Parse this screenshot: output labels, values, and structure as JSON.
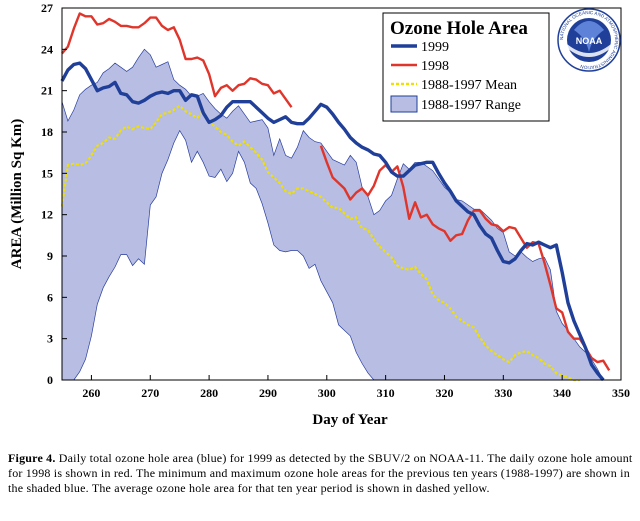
{
  "chart_data": {
    "type": "line",
    "title": "Ozone Hole Area",
    "xlabel": "Day of Year",
    "ylabel": "AREA (Million Sq Km)",
    "xlim": [
      255,
      350
    ],
    "ylim": [
      0,
      27
    ],
    "xticks": [
      260,
      270,
      280,
      290,
      300,
      310,
      320,
      330,
      340,
      350
    ],
    "yticks": [
      0,
      3,
      6,
      9,
      12,
      15,
      18,
      21,
      24,
      27
    ],
    "grid": false,
    "legend_position": "top-right",
    "series": [
      {
        "name": "1999",
        "color": "#1f3f99",
        "style": "solid",
        "x": [
          255,
          256,
          257,
          258,
          259,
          260,
          261,
          262,
          263,
          264,
          265,
          266,
          267,
          268,
          269,
          270,
          271,
          272,
          273,
          274,
          275,
          276,
          277,
          278,
          279,
          280,
          281,
          282,
          283,
          284,
          285,
          286,
          287,
          288,
          289,
          290,
          291,
          292,
          293,
          294,
          295,
          296,
          297,
          298,
          299,
          300,
          301,
          302,
          303,
          304,
          305,
          306,
          307,
          308,
          309,
          310,
          311,
          312,
          313,
          314,
          315,
          316,
          317,
          318,
          319,
          320,
          321,
          322,
          323,
          324,
          325,
          326,
          327,
          328,
          329,
          330,
          331,
          332,
          333,
          334,
          335,
          336,
          337,
          338,
          339,
          340,
          341,
          342,
          343,
          344,
          345,
          346,
          347
        ],
        "y": [
          21.7,
          22.5,
          22.9,
          23.0,
          22.6,
          21.8,
          21.0,
          21.2,
          21.3,
          21.6,
          20.8,
          20.7,
          20.2,
          20.1,
          20.3,
          20.6,
          20.8,
          20.9,
          20.8,
          21.0,
          21.0,
          20.3,
          20.7,
          20.6,
          19.4,
          18.7,
          18.9,
          19.2,
          19.8,
          20.2,
          20.2,
          20.2,
          20.2,
          19.8,
          19.4,
          19.0,
          18.7,
          18.9,
          19.1,
          18.7,
          18.6,
          18.6,
          19.0,
          19.5,
          20.0,
          19.8,
          19.3,
          18.7,
          18.2,
          17.6,
          17.2,
          16.9,
          16.7,
          16.4,
          16.3,
          15.8,
          15.1,
          14.8,
          14.8,
          15.2,
          15.6,
          15.7,
          15.8,
          15.8,
          15.0,
          14.3,
          13.7,
          13.0,
          12.6,
          12.2,
          12.0,
          11.2,
          10.6,
          10.3,
          9.4,
          8.6,
          8.5,
          8.8,
          9.4,
          9.9,
          9.8,
          10.0,
          9.8,
          9.6,
          9.8,
          7.8,
          5.6,
          4.3,
          3.3,
          2.3,
          1.1,
          0.5,
          0.0
        ]
      },
      {
        "name": "1998",
        "color": "#e0352b",
        "style": "solid",
        "segments": [
          {
            "x": [
              255,
              256,
              257,
              258,
              259,
              260,
              261,
              262,
              263,
              264,
              265,
              266,
              267,
              268,
              269,
              270,
              271,
              272,
              273,
              274,
              275,
              276,
              277,
              278,
              279,
              280,
              281,
              282,
              283,
              284,
              285,
              286,
              287,
              288,
              289,
              290,
              291,
              292,
              293,
              294
            ],
            "y": [
              23.7,
              24.2,
              25.5,
              26.6,
              26.4,
              26.4,
              25.8,
              25.9,
              26.2,
              26.0,
              25.7,
              25.7,
              25.6,
              25.6,
              25.9,
              26.3,
              26.3,
              25.7,
              25.4,
              25.6,
              24.7,
              23.3,
              23.3,
              23.4,
              23.2,
              22.2,
              20.6,
              21.2,
              21.4,
              21.0,
              21.4,
              21.5,
              21.9,
              21.8,
              21.5,
              21.4,
              20.8,
              21.0,
              20.4,
              19.8
            ]
          },
          {
            "x": [
              299,
              300,
              301,
              302,
              303,
              304,
              305,
              306,
              307,
              308,
              309,
              310,
              311,
              312,
              313,
              314,
              315,
              316,
              317,
              318,
              319,
              320,
              321,
              322,
              323,
              324,
              325,
              326,
              327,
              328,
              329,
              330,
              331,
              332,
              333,
              334,
              335,
              336,
              337,
              338,
              339,
              340,
              341,
              342,
              343,
              344,
              345,
              346,
              347,
              348
            ],
            "y": [
              17.0,
              15.8,
              14.7,
              14.3,
              13.9,
              13.1,
              13.6,
              13.9,
              13.4,
              14.1,
              15.2,
              15.6,
              15.1,
              15.5,
              14.0,
              11.7,
              12.9,
              11.8,
              12.0,
              11.3,
              11.0,
              10.8,
              10.1,
              10.5,
              10.6,
              11.6,
              12.3,
              12.3,
              11.7,
              11.3,
              11.2,
              10.8,
              11.1,
              11.0,
              10.3,
              9.6,
              10.0,
              9.9,
              8.5,
              6.9,
              5.2,
              4.9,
              3.5,
              3.0,
              3.0,
              2.3,
              1.6,
              1.3,
              1.4,
              0.7
            ]
          }
        ]
      },
      {
        "name": "1988-1997 Mean",
        "color": "#f0e000",
        "style": "dashed",
        "x": [
          255,
          256,
          257,
          258,
          259,
          260,
          261,
          262,
          263,
          264,
          265,
          266,
          267,
          268,
          269,
          270,
          271,
          272,
          273,
          274,
          275,
          276,
          277,
          278,
          279,
          280,
          281,
          282,
          283,
          284,
          285,
          286,
          287,
          288,
          289,
          290,
          291,
          292,
          293,
          294,
          295,
          296,
          297,
          298,
          299,
          300,
          301,
          302,
          303,
          304,
          305,
          306,
          307,
          308,
          309,
          310,
          311,
          312,
          313,
          314,
          315,
          316,
          317,
          318,
          319,
          320,
          321,
          322,
          323,
          324,
          325,
          326,
          327,
          328,
          329,
          330,
          331,
          332,
          333,
          334,
          335,
          336,
          337,
          338,
          339,
          340,
          341,
          342,
          343
        ],
        "y": [
          12.6,
          15.6,
          15.7,
          15.6,
          15.7,
          16.3,
          17.0,
          17.2,
          17.6,
          17.5,
          18.1,
          18.4,
          18.2,
          18.4,
          18.3,
          18.2,
          18.7,
          19.3,
          19.4,
          19.6,
          19.9,
          19.5,
          19.3,
          19.0,
          19.5,
          18.7,
          18.4,
          18.0,
          17.8,
          17.3,
          17.0,
          17.3,
          16.9,
          16.5,
          16.0,
          15.1,
          14.7,
          14.3,
          13.7,
          13.5,
          13.9,
          13.9,
          13.7,
          13.5,
          13.3,
          12.9,
          12.5,
          12.5,
          12.1,
          11.7,
          11.8,
          11.0,
          10.9,
          10.2,
          9.7,
          9.3,
          8.9,
          8.3,
          8.1,
          8.0,
          8.2,
          7.7,
          7.3,
          6.2,
          5.8,
          5.6,
          5.2,
          4.6,
          4.3,
          4.0,
          3.8,
          3.1,
          2.5,
          2.1,
          1.8,
          1.5,
          1.3,
          1.8,
          2.0,
          2.1,
          1.8,
          1.6,
          1.2,
          1.0,
          0.5,
          0.3,
          0.2,
          0.0,
          0.0
        ]
      }
    ],
    "range": {
      "name": "1988-1997 Range",
      "color": "#b7bde3",
      "x": [
        255,
        256,
        257,
        258,
        259,
        260,
        261,
        262,
        263,
        264,
        265,
        266,
        267,
        268,
        269,
        270,
        271,
        272,
        273,
        274,
        275,
        276,
        277,
        278,
        279,
        280,
        281,
        282,
        283,
        284,
        285,
        286,
        287,
        288,
        289,
        290,
        291,
        292,
        293,
        294,
        295,
        296,
        297,
        298,
        299,
        300,
        301,
        302,
        303,
        304,
        305,
        306,
        307,
        308,
        309,
        310,
        311,
        312,
        313,
        314,
        315,
        316,
        317,
        318,
        319,
        320,
        321,
        322,
        323,
        324,
        325,
        326,
        327,
        328,
        329,
        330,
        331,
        332,
        333,
        334,
        335,
        336,
        337,
        338,
        339,
        340,
        341,
        342,
        343,
        344,
        345,
        346,
        347
      ],
      "max": [
        20.2,
        18.8,
        19.6,
        20.7,
        21.1,
        21.4,
        21.6,
        22.3,
        22.6,
        23.0,
        22.7,
        22.4,
        22.7,
        23.4,
        24.0,
        23.6,
        22.7,
        22.9,
        23.1,
        21.8,
        21.4,
        21.1,
        20.6,
        20.6,
        20.8,
        20.2,
        19.7,
        19.3,
        19.0,
        19.5,
        19.9,
        19.3,
        18.7,
        18.8,
        18.9,
        18.3,
        16.3,
        17.5,
        16.3,
        16.1,
        16.9,
        18.1,
        17.6,
        17.3,
        17.2,
        16.6,
        16.0,
        15.8,
        15.6,
        16.3,
        15.8,
        14.0,
        13.3,
        12.0,
        12.3,
        13.0,
        13.4,
        14.6,
        15.7,
        15.3,
        15.8,
        15.8,
        15.5,
        15.2,
        14.6,
        14.0,
        13.6,
        13.1,
        13.0,
        12.7,
        12.4,
        12.4,
        12.0,
        11.6,
        11.0,
        10.7,
        9.3,
        9.0,
        9.3,
        8.9,
        8.6,
        8.8,
        8.9,
        8.0,
        5.0,
        4.1,
        3.6,
        3.0,
        2.4,
        2.0,
        1.5,
        0.8,
        0.0
      ],
      "min": [
        0.0,
        0.0,
        0.0,
        0.6,
        1.5,
        3.2,
        5.5,
        6.7,
        7.5,
        8.2,
        9.1,
        9.1,
        8.3,
        8.8,
        8.4,
        12.7,
        13.3,
        15.0,
        16.0,
        17.2,
        18.1,
        17.4,
        15.8,
        16.6,
        15.8,
        14.8,
        14.7,
        15.3,
        14.4,
        15.0,
        16.6,
        15.8,
        14.3,
        13.9,
        12.8,
        11.4,
        9.8,
        9.4,
        9.3,
        9.4,
        9.4,
        9.0,
        8.1,
        8.4,
        7.2,
        6.4,
        5.6,
        4.0,
        3.6,
        3.2,
        2.0,
        1.2,
        0.5,
        0.0,
        0.0,
        0.0,
        0.0,
        0.0,
        0.0,
        0.0,
        0.0,
        0.0,
        0.0,
        0.0,
        0.0,
        0.0,
        0.0,
        0.0,
        0.0,
        0.0,
        0.0,
        0.0,
        0.0,
        0.0,
        0.0,
        0.0,
        0.0,
        0.0,
        0.0,
        0.0,
        0.0,
        0.0,
        0.0,
        0.0,
        0.0,
        0.0,
        0.0,
        0.0,
        0.0,
        0.0,
        0.0,
        0.0,
        0.0
      ]
    }
  },
  "legend": {
    "title": "Ozone Hole Area",
    "items": [
      {
        "label": "1999",
        "icon": "blue-line"
      },
      {
        "label": "1998",
        "icon": "red-line"
      },
      {
        "label": "1988-1997 Mean",
        "icon": "yellow-dashed-line"
      },
      {
        "label": "1988-1997 Range",
        "icon": "shaded-swatch"
      }
    ]
  },
  "logo": {
    "text": "NOAA",
    "ring_text": "NATIONAL OCEANIC AND ATMOSPHERIC ADMINISTRATION",
    "icon": "noaa-logo"
  },
  "caption": {
    "label": "Figure 4.",
    "text": "Daily total ozone hole area (blue)  for 1999 as detected by the SBUV/2 on NOAA-11.  The daily ozone hole amount for 1998 is shown in red.  The minimum and maximum ozone hole areas for the previous ten years (1988-1997)  are shown in the shaded blue.  The average ozone hole area for that ten year period is shown in dashed yellow."
  }
}
